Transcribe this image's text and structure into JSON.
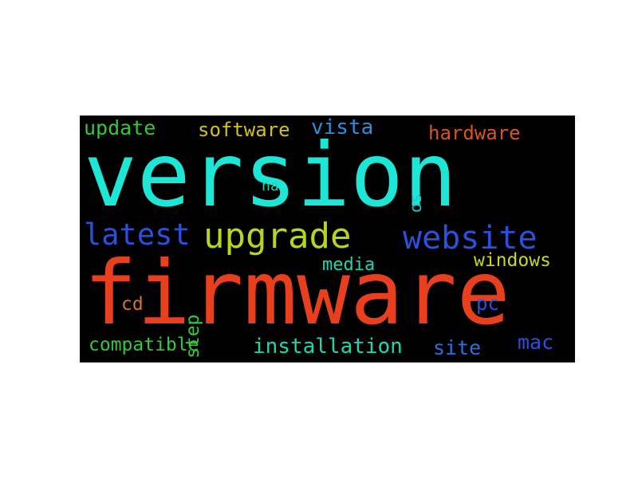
{
  "word_cloud": {
    "background": "#000000",
    "words": [
      {
        "key": "version",
        "text": "version",
        "color": "#1ee6d6"
      },
      {
        "key": "firmware",
        "text": "firmware",
        "color": "#e8401e"
      },
      {
        "key": "upgrade",
        "text": "upgrade",
        "color": "#b4d61e"
      },
      {
        "key": "website",
        "text": "website",
        "color": "#2a50dc"
      },
      {
        "key": "latest",
        "text": "latest",
        "color": "#2a50dc"
      },
      {
        "key": "update",
        "text": "update",
        "color": "#34c83a"
      },
      {
        "key": "software",
        "text": "software",
        "color": "#d2c21e"
      },
      {
        "key": "vista",
        "text": "vista",
        "color": "#2a90d8"
      },
      {
        "key": "hardware",
        "text": "hardware",
        "color": "#d8561e"
      },
      {
        "key": "na",
        "text": "na",
        "color": "#1ed6b0"
      },
      {
        "key": "os",
        "text": "os",
        "color": "#1ec6c6"
      },
      {
        "key": "step",
        "text": "step",
        "color": "#34c83a"
      },
      {
        "key": "media",
        "text": "media",
        "color": "#1ed6b0"
      },
      {
        "key": "windows",
        "text": "windows",
        "color": "#c8d61e"
      },
      {
        "key": "cd",
        "text": "cd",
        "color": "#d8761e"
      },
      {
        "key": "pc",
        "text": "pc",
        "color": "#2a50dc"
      },
      {
        "key": "compatible",
        "text": "compatible",
        "color": "#34c83a"
      },
      {
        "key": "installation",
        "text": "installation",
        "color": "#1ed6b0"
      },
      {
        "key": "site",
        "text": "site",
        "color": "#2a70dc"
      },
      {
        "key": "mac",
        "text": "mac",
        "color": "#2a50dc"
      }
    ]
  }
}
